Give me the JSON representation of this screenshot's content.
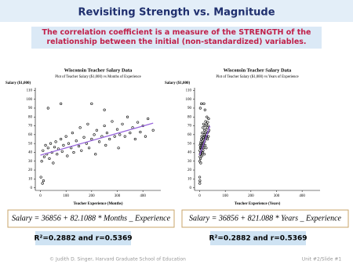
{
  "title": "Revisiting Strength vs. Magnitude",
  "subtitle": "The correlation coefficient is a measure of the STRENGTH of the relationship between the initial (non-standardized) variables.",
  "footer": {
    "left": "© Judith D. Singer, Harvard Graduate School of Education",
    "right": "Unit #2/Slide #1"
  },
  "chart_data": [
    {
      "type": "scatter",
      "title": "Wisconsin Teacher Salary Data",
      "subtitle": "Plot of Teacher Salary ($1,000) vs Months of Experience",
      "y_label": "Salary ($1,000)",
      "x_label": "Teacher Experience (Months)",
      "xlim": [
        -20,
        470
      ],
      "ylim": [
        -3,
        113
      ],
      "xticks": [
        0,
        100,
        200,
        300,
        400
      ],
      "yticks": [
        0,
        10,
        20,
        30,
        40,
        50,
        60,
        70,
        80,
        90,
        100,
        110
      ],
      "color": "#000000",
      "x": [
        5,
        10,
        15,
        20,
        25,
        30,
        35,
        40,
        45,
        50,
        55,
        60,
        65,
        70,
        80,
        85,
        90,
        100,
        105,
        110,
        120,
        125,
        130,
        140,
        150,
        155,
        160,
        170,
        180,
        185,
        190,
        200,
        210,
        215,
        220,
        230,
        240,
        250,
        255,
        260,
        270,
        280,
        290,
        300,
        305,
        310,
        320,
        330,
        340,
        350,
        360,
        370,
        380,
        390,
        400,
        410,
        420,
        440,
        30,
        80,
        2,
        8,
        12,
        200,
        250
      ],
      "values": [
        30,
        42,
        35,
        48,
        38,
        45,
        33,
        50,
        40,
        28,
        46,
        52,
        38,
        44,
        55,
        41,
        48,
        58,
        36,
        50,
        45,
        62,
        40,
        53,
        47,
        68,
        42,
        57,
        50,
        72,
        45,
        55,
        60,
        38,
        65,
        52,
        58,
        70,
        48,
        62,
        55,
        75,
        58,
        66,
        45,
        60,
        72,
        58,
        80,
        62,
        68,
        55,
        74,
        63,
        70,
        58,
        78,
        65,
        90,
        95,
        12,
        5,
        8,
        95,
        88
      ],
      "fit": {
        "x": [
          0,
          440
        ],
        "values": [
          36.9,
          73.0
        ],
        "color": "#9966dd"
      },
      "equation": "Salary = 36856 + 82.1088 * Months _ Experience",
      "stat": "R²=0.2882 and r=0.5369"
    },
    {
      "type": "scatter",
      "title": "Wisconsin Teacher Salary Data",
      "subtitle": "Plot of Teacher Salary ($1,000) vs Years of Experience",
      "y_label": "Salary ($1,000)",
      "x_label": "Teacher Experience (Years)",
      "xlim": [
        -20,
        470
      ],
      "ylim": [
        -3,
        113
      ],
      "xticks": [
        0,
        100,
        200,
        300,
        400
      ],
      "yticks": [
        0,
        10,
        20,
        30,
        40,
        50,
        60,
        70,
        80,
        90,
        100,
        110
      ],
      "color": "#000000",
      "x": [
        0.4,
        0.8,
        1.3,
        1.7,
        2.1,
        2.5,
        2.9,
        3.3,
        3.8,
        4.2,
        4.6,
        5,
        5.4,
        5.8,
        6.7,
        7.1,
        7.5,
        8.3,
        8.8,
        9.2,
        10,
        10.4,
        10.8,
        11.7,
        12.5,
        12.9,
        13.3,
        14.2,
        15,
        15.4,
        15.8,
        16.7,
        17.5,
        17.9,
        18.3,
        19.2,
        20,
        20.8,
        21.3,
        21.7,
        22.5,
        23.3,
        24.2,
        25,
        25.4,
        25.8,
        26.7,
        27.5,
        28.3,
        29.2,
        30,
        30.8,
        31.7,
        32.5,
        33.3,
        34.2,
        35,
        36.7,
        2.5,
        6.7,
        0.2,
        0.7,
        1,
        16.7,
        20.8
      ],
      "values": [
        30,
        42,
        35,
        48,
        38,
        45,
        33,
        50,
        40,
        28,
        46,
        52,
        38,
        44,
        55,
        41,
        48,
        58,
        36,
        50,
        45,
        62,
        40,
        53,
        47,
        68,
        42,
        57,
        50,
        72,
        45,
        55,
        60,
        38,
        65,
        52,
        58,
        70,
        48,
        62,
        55,
        75,
        58,
        66,
        45,
        60,
        72,
        58,
        80,
        62,
        68,
        55,
        74,
        63,
        70,
        58,
        78,
        65,
        90,
        95,
        12,
        5,
        8,
        95,
        88
      ],
      "fit": {
        "x": [
          0,
          40
        ],
        "values": [
          36.9,
          69.7
        ],
        "color": "#9966dd"
      },
      "equation": "Salary = 36856 + 821.088 * Years _ Experience",
      "stat": "R²=0.2882 and r=0.5369"
    }
  ]
}
